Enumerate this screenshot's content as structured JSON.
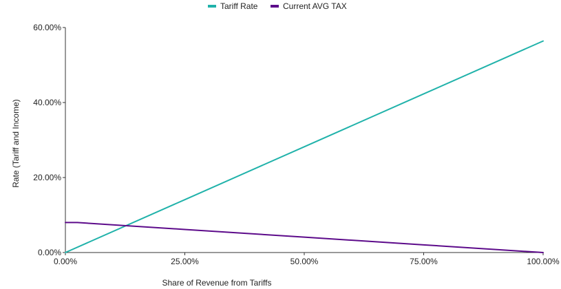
{
  "chart_data": {
    "type": "line",
    "title": "",
    "xlabel": "Share of Revenue from Tariffs",
    "ylabel": "Rate (Tariff and Income)",
    "xlim": [
      0,
      1
    ],
    "ylim": [
      0,
      0.6
    ],
    "x_ticks": [
      0,
      0.25,
      0.5,
      0.75,
      1.0
    ],
    "x_tick_labels": [
      "0.00%",
      "25.00%",
      "50.00%",
      "75.00%",
      "100.00%"
    ],
    "y_ticks": [
      0,
      0.2,
      0.4,
      0.6
    ],
    "y_tick_labels": [
      "0.00%",
      "20.00%",
      "40.00%",
      "60.00%"
    ],
    "grid": false,
    "legend_position": "top-center",
    "series": [
      {
        "name": "Tariff Rate",
        "color": "#20b2aa",
        "x": [
          0,
          0.25,
          0.5,
          0.75,
          1.0
        ],
        "y": [
          0,
          0.141,
          0.282,
          0.423,
          0.564
        ]
      },
      {
        "name": "Current AVG TAX",
        "color": "#5c0a8a",
        "x": [
          0,
          0.025,
          0.25,
          0.5,
          0.75,
          1.0
        ],
        "y": [
          0.08,
          0.08,
          0.0615,
          0.041,
          0.0205,
          0
        ]
      }
    ]
  }
}
